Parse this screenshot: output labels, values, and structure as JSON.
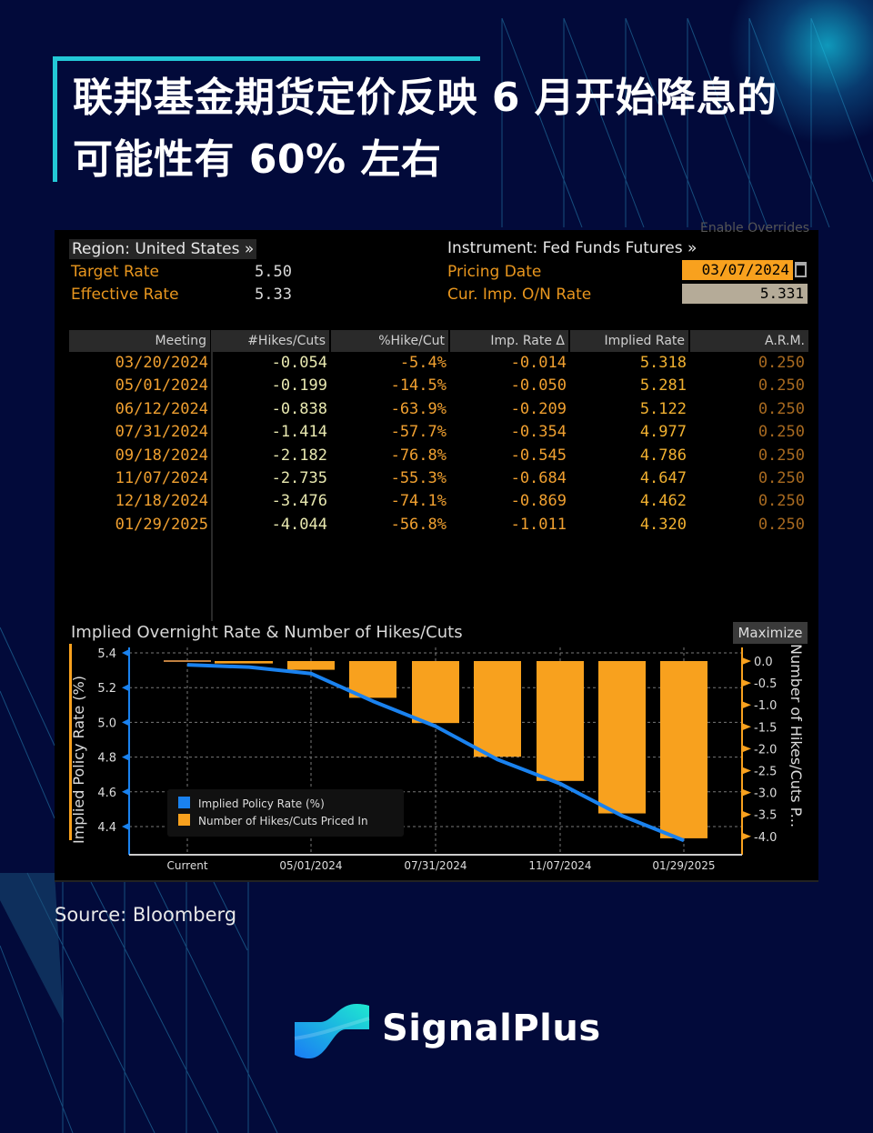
{
  "header": {
    "title_line1": "联邦基金期货定价反映 6 月开始降息的",
    "title_line2": "可能性有 60% 左右"
  },
  "terminal": {
    "overrides_label": "Enable Overrides",
    "region_label": "Region: United States »",
    "instrument_label": "Instrument: Fed Funds Futures »",
    "target_rate_label": "Target Rate",
    "target_rate_value": "5.50",
    "effective_rate_label": "Effective Rate",
    "effective_rate_value": "5.33",
    "pricing_date_label": "Pricing Date",
    "pricing_date_value": "03/07/2024",
    "cur_imp_label": "Cur. Imp. O/N Rate",
    "cur_imp_value": "5.331",
    "table": {
      "headers": [
        "Meeting",
        "#Hikes/Cuts",
        "%Hike/Cut",
        "Imp. Rate Δ",
        "Implied Rate",
        "A.R.M."
      ],
      "rows": [
        [
          "03/20/2024",
          "-0.054",
          "-5.4%",
          "-0.014",
          "5.318",
          "0.250"
        ],
        [
          "05/01/2024",
          "-0.199",
          "-14.5%",
          "-0.050",
          "5.281",
          "0.250"
        ],
        [
          "06/12/2024",
          "-0.838",
          "-63.9%",
          "-0.209",
          "5.122",
          "0.250"
        ],
        [
          "07/31/2024",
          "-1.414",
          "-57.7%",
          "-0.354",
          "4.977",
          "0.250"
        ],
        [
          "09/18/2024",
          "-2.182",
          "-76.8%",
          "-0.545",
          "4.786",
          "0.250"
        ],
        [
          "11/07/2024",
          "-2.735",
          "-55.3%",
          "-0.684",
          "4.647",
          "0.250"
        ],
        [
          "12/18/2024",
          "-3.476",
          "-74.1%",
          "-0.869",
          "4.462",
          "0.250"
        ],
        [
          "01/29/2025",
          "-4.044",
          "-56.8%",
          "-1.011",
          "4.320",
          "0.250"
        ]
      ]
    },
    "chart_title": "Implied Overnight Rate & Number of Hikes/Cuts",
    "maximize_label": "Maximize"
  },
  "chart_data": {
    "type": "bar",
    "title": "Implied Overnight Rate & Number of Hikes/Cuts",
    "categories": [
      "Current",
      "03/20/2024",
      "05/01/2024",
      "06/12/2024",
      "07/31/2024",
      "09/18/2024",
      "11/07/2024",
      "12/18/2024",
      "01/29/2025"
    ],
    "x_tick_labels": [
      "Current",
      "05/01/2024",
      "07/31/2024",
      "11/07/2024",
      "01/29/2025"
    ],
    "series": [
      {
        "name": "Implied Policy Rate (%)",
        "type": "line",
        "axis": "left",
        "color": "#1a82ef",
        "values": [
          5.331,
          5.318,
          5.281,
          5.122,
          4.977,
          4.786,
          4.647,
          4.462,
          4.32
        ]
      },
      {
        "name": "Number of Hikes/Cuts Priced In",
        "type": "bar",
        "axis": "right",
        "color": "#f8a11e",
        "values": [
          0,
          -0.054,
          -0.199,
          -0.838,
          -1.414,
          -2.182,
          -2.735,
          -3.476,
          -4.044
        ]
      }
    ],
    "ylabel_left": "Implied Policy Rate (%)",
    "ylabel_right": "Number of Hikes/Cuts P...",
    "ylim_left": [
      4.2,
      5.45
    ],
    "yticks_left": [
      "5.4",
      "5.2",
      "5.0",
      "4.8",
      "4.6",
      "4.4"
    ],
    "ylim_right": [
      -4.4,
      0.25
    ],
    "yticks_right": [
      "0.0",
      "-0.5",
      "-1.0",
      "-1.5",
      "-2.0",
      "-2.5",
      "-3.0",
      "-3.5",
      "-4.0"
    ],
    "grid": true,
    "legend_position": "lower-left"
  },
  "footer": {
    "source": "Source: Bloomberg",
    "brand": "SignalPlus"
  }
}
